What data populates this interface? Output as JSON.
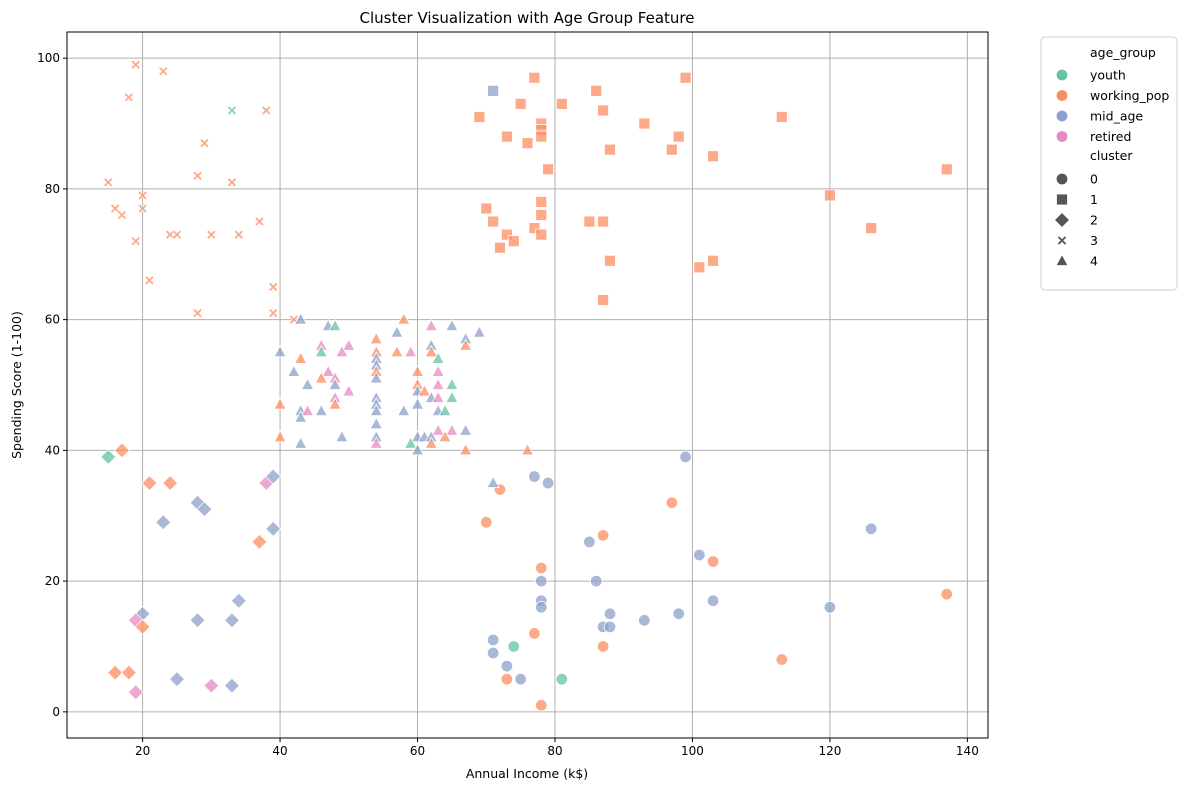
{
  "chart_data": {
    "type": "scatter",
    "title": "Cluster Visualization with Age Group Feature",
    "xlabel": "Annual Income (k$)",
    "ylabel": "Spending Score (1-100)",
    "xlim": [
      9,
      143
    ],
    "ylim": [
      -4,
      104
    ],
    "xticks": [
      20,
      40,
      60,
      80,
      100,
      120,
      140
    ],
    "yticks": [
      0,
      20,
      40,
      60,
      80,
      100
    ],
    "grid": true,
    "legend_position": "outside-top-right",
    "legend": {
      "hue_title": "age_group",
      "style_title": "cluster",
      "age_groups": [
        {
          "name": "youth",
          "color": "#66c2a5"
        },
        {
          "name": "working_pop",
          "color": "#fc8d62"
        },
        {
          "name": "mid_age",
          "color": "#8da0cb"
        },
        {
          "name": "retired",
          "color": "#e78ac3"
        }
      ],
      "clusters": [
        {
          "name": "0",
          "marker": "circle"
        },
        {
          "name": "1",
          "marker": "square"
        },
        {
          "name": "2",
          "marker": "diamond"
        },
        {
          "name": "3",
          "marker": "x"
        },
        {
          "name": "4",
          "marker": "triangle"
        }
      ]
    },
    "points": [
      [
        19,
        99,
        3,
        "working_pop"
      ],
      [
        23,
        98,
        3,
        "working_pop"
      ],
      [
        18,
        94,
        3,
        "working_pop"
      ],
      [
        33,
        92,
        3,
        "youth"
      ],
      [
        38,
        92,
        3,
        "working_pop"
      ],
      [
        29,
        87,
        3,
        "working_pop"
      ],
      [
        28,
        82,
        3,
        "working_pop"
      ],
      [
        15,
        81,
        3,
        "working_pop"
      ],
      [
        33,
        81,
        3,
        "working_pop"
      ],
      [
        20,
        79,
        3,
        "working_pop"
      ],
      [
        16,
        77,
        3,
        "working_pop"
      ],
      [
        20,
        77,
        3,
        "working_pop"
      ],
      [
        17,
        76,
        3,
        "working_pop"
      ],
      [
        37,
        75,
        3,
        "working_pop"
      ],
      [
        24,
        73,
        3,
        "working_pop"
      ],
      [
        25,
        73,
        3,
        "working_pop"
      ],
      [
        30,
        73,
        3,
        "working_pop"
      ],
      [
        34,
        73,
        3,
        "working_pop"
      ],
      [
        19,
        72,
        3,
        "working_pop"
      ],
      [
        21,
        66,
        3,
        "working_pop"
      ],
      [
        39,
        65,
        3,
        "working_pop"
      ],
      [
        28,
        61,
        3,
        "working_pop"
      ],
      [
        39,
        61,
        3,
        "working_pop"
      ],
      [
        42,
        60,
        3,
        "working_pop"
      ],
      [
        71,
        95,
        1,
        "mid_age"
      ],
      [
        77,
        97,
        1,
        "working_pop"
      ],
      [
        99,
        97,
        1,
        "working_pop"
      ],
      [
        75,
        93,
        1,
        "working_pop"
      ],
      [
        81,
        93,
        1,
        "working_pop"
      ],
      [
        86,
        95,
        1,
        "working_pop"
      ],
      [
        87,
        92,
        1,
        "working_pop"
      ],
      [
        69,
        91,
        1,
        "working_pop"
      ],
      [
        93,
        90,
        1,
        "working_pop"
      ],
      [
        113,
        91,
        1,
        "working_pop"
      ],
      [
        78,
        90,
        1,
        "working_pop"
      ],
      [
        78,
        89,
        1,
        "working_pop"
      ],
      [
        73,
        88,
        1,
        "working_pop"
      ],
      [
        78,
        88,
        1,
        "working_pop"
      ],
      [
        98,
        88,
        1,
        "working_pop"
      ],
      [
        76,
        87,
        1,
        "working_pop"
      ],
      [
        88,
        86,
        1,
        "working_pop"
      ],
      [
        97,
        86,
        1,
        "working_pop"
      ],
      [
        103,
        85,
        1,
        "working_pop"
      ],
      [
        79,
        83,
        1,
        "working_pop"
      ],
      [
        137,
        83,
        1,
        "working_pop"
      ],
      [
        120,
        79,
        1,
        "working_pop"
      ],
      [
        78,
        78,
        1,
        "working_pop"
      ],
      [
        70,
        77,
        1,
        "working_pop"
      ],
      [
        78,
        76,
        1,
        "working_pop"
      ],
      [
        71,
        75,
        1,
        "working_pop"
      ],
      [
        85,
        75,
        1,
        "working_pop"
      ],
      [
        87,
        75,
        1,
        "working_pop"
      ],
      [
        77,
        74,
        1,
        "working_pop"
      ],
      [
        126,
        74,
        1,
        "working_pop"
      ],
      [
        73,
        73,
        1,
        "working_pop"
      ],
      [
        78,
        73,
        1,
        "working_pop"
      ],
      [
        74,
        72,
        1,
        "working_pop"
      ],
      [
        72,
        71,
        1,
        "working_pop"
      ],
      [
        88,
        69,
        1,
        "working_pop"
      ],
      [
        103,
        69,
        1,
        "working_pop"
      ],
      [
        101,
        68,
        1,
        "working_pop"
      ],
      [
        87,
        63,
        1,
        "working_pop"
      ],
      [
        15,
        39,
        2,
        "youth"
      ],
      [
        17,
        40,
        2,
        "working_pop"
      ],
      [
        21,
        35,
        2,
        "working_pop"
      ],
      [
        24,
        35,
        2,
        "working_pop"
      ],
      [
        38,
        35,
        2,
        "retired"
      ],
      [
        39,
        36,
        2,
        "mid_age"
      ],
      [
        28,
        32,
        2,
        "mid_age"
      ],
      [
        29,
        31,
        2,
        "mid_age"
      ],
      [
        23,
        29,
        2,
        "mid_age"
      ],
      [
        39,
        28,
        2,
        "mid_age"
      ],
      [
        37,
        26,
        2,
        "working_pop"
      ],
      [
        34,
        17,
        2,
        "mid_age"
      ],
      [
        20,
        15,
        2,
        "mid_age"
      ],
      [
        19,
        14,
        2,
        "retired"
      ],
      [
        28,
        14,
        2,
        "mid_age"
      ],
      [
        33,
        14,
        2,
        "mid_age"
      ],
      [
        20,
        13,
        2,
        "working_pop"
      ],
      [
        16,
        6,
        2,
        "working_pop"
      ],
      [
        18,
        6,
        2,
        "working_pop"
      ],
      [
        25,
        5,
        2,
        "mid_age"
      ],
      [
        30,
        4,
        2,
        "retired"
      ],
      [
        33,
        4,
        2,
        "mid_age"
      ],
      [
        19,
        3,
        2,
        "retired"
      ],
      [
        99,
        39,
        0,
        "mid_age"
      ],
      [
        77,
        36,
        0,
        "mid_age"
      ],
      [
        79,
        35,
        0,
        "mid_age"
      ],
      [
        72,
        34,
        0,
        "working_pop"
      ],
      [
        97,
        32,
        0,
        "working_pop"
      ],
      [
        70,
        29,
        0,
        "working_pop"
      ],
      [
        126,
        28,
        0,
        "mid_age"
      ],
      [
        87,
        27,
        0,
        "working_pop"
      ],
      [
        85,
        26,
        0,
        "mid_age"
      ],
      [
        101,
        24,
        0,
        "mid_age"
      ],
      [
        103,
        23,
        0,
        "working_pop"
      ],
      [
        78,
        22,
        0,
        "working_pop"
      ],
      [
        78,
        20,
        0,
        "mid_age"
      ],
      [
        86,
        20,
        0,
        "mid_age"
      ],
      [
        137,
        18,
        0,
        "working_pop"
      ],
      [
        78,
        17,
        0,
        "mid_age"
      ],
      [
        103,
        17,
        0,
        "mid_age"
      ],
      [
        78,
        16,
        0,
        "mid_age"
      ],
      [
        120,
        16,
        0,
        "mid_age"
      ],
      [
        88,
        15,
        0,
        "mid_age"
      ],
      [
        98,
        15,
        0,
        "mid_age"
      ],
      [
        93,
        14,
        0,
        "mid_age"
      ],
      [
        87,
        13,
        0,
        "mid_age"
      ],
      [
        88,
        13,
        0,
        "mid_age"
      ],
      [
        77,
        12,
        0,
        "working_pop"
      ],
      [
        71,
        11,
        0,
        "mid_age"
      ],
      [
        74,
        10,
        0,
        "youth"
      ],
      [
        87,
        10,
        0,
        "working_pop"
      ],
      [
        71,
        9,
        0,
        "mid_age"
      ],
      [
        113,
        8,
        0,
        "working_pop"
      ],
      [
        73,
        7,
        0,
        "mid_age"
      ],
      [
        73,
        5,
        0,
        "working_pop"
      ],
      [
        75,
        5,
        0,
        "mid_age"
      ],
      [
        81,
        5,
        0,
        "youth"
      ],
      [
        78,
        1,
        0,
        "working_pop"
      ],
      [
        43,
        60,
        4,
        "mid_age"
      ],
      [
        58,
        60,
        4,
        "working_pop"
      ],
      [
        47,
        59,
        4,
        "mid_age"
      ],
      [
        48,
        59,
        4,
        "youth"
      ],
      [
        62,
        59,
        4,
        "retired"
      ],
      [
        65,
        59,
        4,
        "mid_age"
      ],
      [
        57,
        58,
        4,
        "mid_age"
      ],
      [
        69,
        58,
        4,
        "mid_age"
      ],
      [
        54,
        57,
        4,
        "working_pop"
      ],
      [
        67,
        57,
        4,
        "mid_age"
      ],
      [
        46,
        56,
        4,
        "retired"
      ],
      [
        50,
        56,
        4,
        "retired"
      ],
      [
        62,
        56,
        4,
        "mid_age"
      ],
      [
        67,
        56,
        4,
        "working_pop"
      ],
      [
        40,
        55,
        4,
        "mid_age"
      ],
      [
        46,
        55,
        4,
        "youth"
      ],
      [
        49,
        55,
        4,
        "retired"
      ],
      [
        54,
        55,
        4,
        "working_pop"
      ],
      [
        57,
        55,
        4,
        "working_pop"
      ],
      [
        59,
        55,
        4,
        "retired"
      ],
      [
        62,
        55,
        4,
        "working_pop"
      ],
      [
        43,
        54,
        4,
        "working_pop"
      ],
      [
        54,
        54,
        4,
        "mid_age"
      ],
      [
        63,
        54,
        4,
        "youth"
      ],
      [
        54,
        53,
        4,
        "mid_age"
      ],
      [
        42,
        52,
        4,
        "mid_age"
      ],
      [
        47,
        52,
        4,
        "retired"
      ],
      [
        54,
        52,
        4,
        "working_pop"
      ],
      [
        60,
        52,
        4,
        "working_pop"
      ],
      [
        63,
        52,
        4,
        "retired"
      ],
      [
        46,
        51,
        4,
        "working_pop"
      ],
      [
        48,
        51,
        4,
        "retired"
      ],
      [
        54,
        51,
        4,
        "mid_age"
      ],
      [
        44,
        50,
        4,
        "mid_age"
      ],
      [
        48,
        50,
        4,
        "mid_age"
      ],
      [
        60,
        50,
        4,
        "working_pop"
      ],
      [
        63,
        50,
        4,
        "retired"
      ],
      [
        65,
        50,
        4,
        "youth"
      ],
      [
        50,
        49,
        4,
        "retired"
      ],
      [
        60,
        49,
        4,
        "mid_age"
      ],
      [
        61,
        49,
        4,
        "working_pop"
      ],
      [
        48,
        48,
        4,
        "retired"
      ],
      [
        54,
        48,
        4,
        "mid_age"
      ],
      [
        62,
        48,
        4,
        "mid_age"
      ],
      [
        63,
        48,
        4,
        "retired"
      ],
      [
        65,
        48,
        4,
        "youth"
      ],
      [
        40,
        47,
        4,
        "working_pop"
      ],
      [
        48,
        47,
        4,
        "working_pop"
      ],
      [
        54,
        47,
        4,
        "mid_age"
      ],
      [
        60,
        47,
        4,
        "mid_age"
      ],
      [
        43,
        46,
        4,
        "mid_age"
      ],
      [
        44,
        46,
        4,
        "retired"
      ],
      [
        46,
        46,
        4,
        "mid_age"
      ],
      [
        54,
        46,
        4,
        "mid_age"
      ],
      [
        58,
        46,
        4,
        "mid_age"
      ],
      [
        63,
        46,
        4,
        "mid_age"
      ],
      [
        64,
        46,
        4,
        "youth"
      ],
      [
        43,
        45,
        4,
        "mid_age"
      ],
      [
        54,
        44,
        4,
        "mid_age"
      ],
      [
        63,
        43,
        4,
        "retired"
      ],
      [
        65,
        43,
        4,
        "retired"
      ],
      [
        67,
        43,
        4,
        "mid_age"
      ],
      [
        40,
        42,
        4,
        "working_pop"
      ],
      [
        49,
        42,
        4,
        "mid_age"
      ],
      [
        54,
        42,
        4,
        "mid_age"
      ],
      [
        60,
        42,
        4,
        "mid_age"
      ],
      [
        61,
        42,
        4,
        "mid_age"
      ],
      [
        62,
        42,
        4,
        "mid_age"
      ],
      [
        64,
        42,
        4,
        "working_pop"
      ],
      [
        43,
        41,
        4,
        "mid_age"
      ],
      [
        54,
        41,
        4,
        "retired"
      ],
      [
        59,
        41,
        4,
        "youth"
      ],
      [
        62,
        41,
        4,
        "working_pop"
      ],
      [
        60,
        40,
        4,
        "mid_age"
      ],
      [
        67,
        40,
        4,
        "working_pop"
      ],
      [
        76,
        40,
        4,
        "working_pop"
      ],
      [
        71,
        35,
        4,
        "mid_age"
      ]
    ]
  }
}
